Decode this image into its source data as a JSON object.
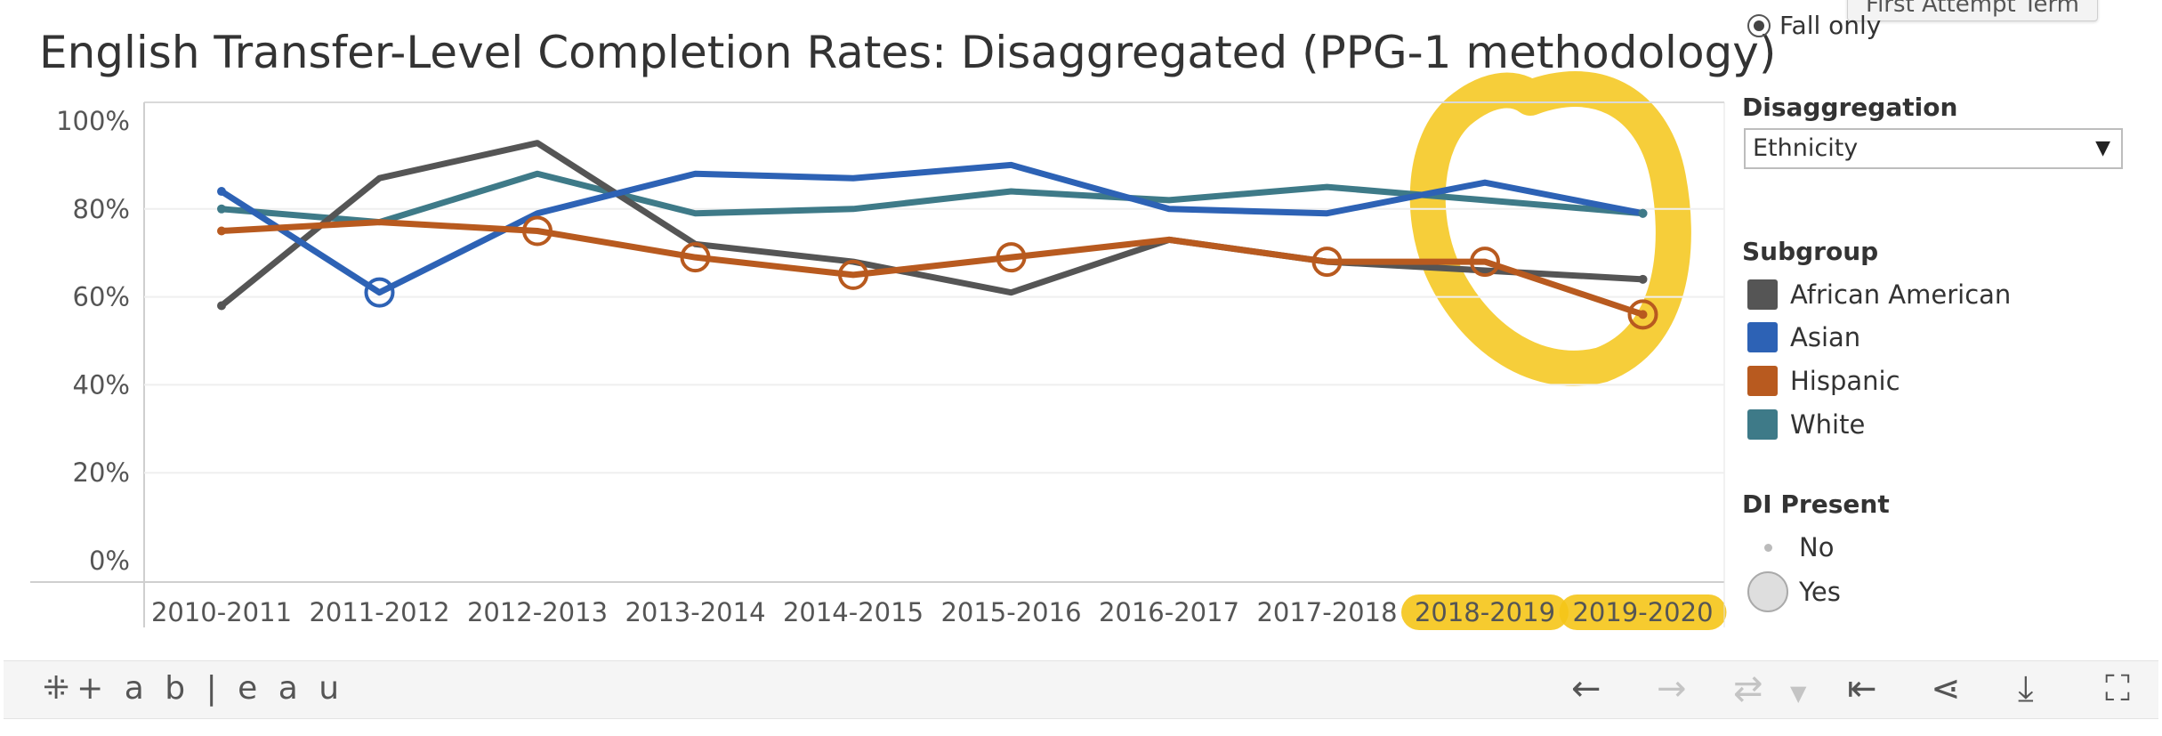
{
  "title": "English Transfer-Level Completion Rates: Disaggregated (PPG-1 methodology)",
  "filter": {
    "fall_only_label": "Fall only",
    "tooltip_label": "First Attempt Term"
  },
  "disaggregation": {
    "label": "Disaggregation",
    "selected": "Ethnicity"
  },
  "subgroup": {
    "label": "Subgroup",
    "items": [
      {
        "name": "African American",
        "color": "#555555"
      },
      {
        "name": "Asian",
        "color": "#2d62b5"
      },
      {
        "name": "Hispanic",
        "color": "#b85a1f"
      },
      {
        "name": "White",
        "color": "#3e7a88"
      }
    ]
  },
  "di_present": {
    "label": "DI Present",
    "no_label": "No",
    "yes_label": "Yes"
  },
  "highlight_color": "#f5c518",
  "chart_data": {
    "type": "line",
    "title": "English Transfer-Level Completion Rates: Disaggregated (PPG-1 methodology)",
    "categories": [
      "2010-2011",
      "2011-2012",
      "2012-2013",
      "2013-2014",
      "2014-2015",
      "2015-2016",
      "2016-2017",
      "2017-2018",
      "2018-2019",
      "2019-2020"
    ],
    "y_ticks": [
      "100%",
      "80%",
      "60%",
      "40%",
      "20%",
      "0%"
    ],
    "ylim": [
      0,
      100
    ],
    "highlighted_categories": [
      "2018-2019",
      "2019-2020"
    ],
    "series": [
      {
        "name": "African American",
        "color": "#555555",
        "values": [
          58,
          87,
          95,
          72,
          68,
          61,
          73,
          68,
          66,
          64
        ],
        "di": []
      },
      {
        "name": "Asian",
        "color": "#2d62b5",
        "values": [
          84,
          61,
          79,
          88,
          87,
          90,
          80,
          79,
          86,
          79
        ],
        "di": [
          1
        ]
      },
      {
        "name": "Hispanic",
        "color": "#b85a1f",
        "values": [
          75,
          77,
          75,
          69,
          65,
          69,
          73,
          68,
          68,
          56
        ],
        "di": [
          2,
          3,
          4,
          5,
          7,
          8,
          9
        ]
      },
      {
        "name": "White",
        "color": "#3e7a88",
        "values": [
          80,
          77,
          88,
          79,
          80,
          84,
          82,
          85,
          82,
          79
        ],
        "di": []
      }
    ]
  },
  "toolbar": {
    "logo": "+ a b | e a u",
    "icons": [
      "undo-icon",
      "redo-icon",
      "revert-icon",
      "reset-icon",
      "share-icon",
      "download-icon",
      "fullscreen-icon"
    ]
  }
}
